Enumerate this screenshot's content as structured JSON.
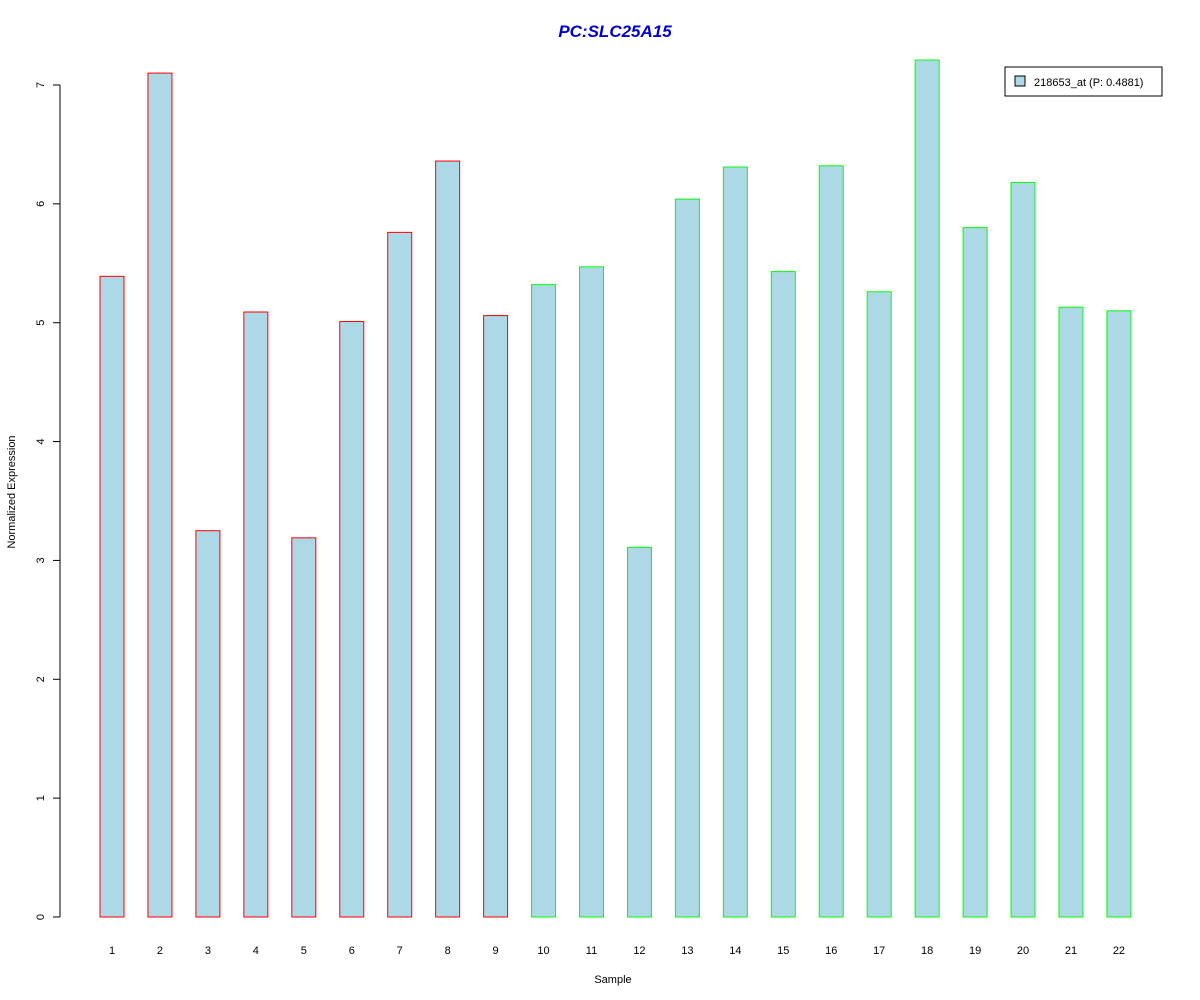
{
  "chart_data": {
    "type": "bar",
    "title": "PC:SLC25A15",
    "xlabel": "Sample",
    "ylabel": "Normalized Expression",
    "ylim": [
      0,
      7.2
    ],
    "yticks": [
      0,
      1,
      2,
      3,
      4,
      5,
      6,
      7
    ],
    "categories": [
      "1",
      "2",
      "3",
      "4",
      "5",
      "6",
      "7",
      "8",
      "9",
      "10",
      "11",
      "12",
      "13",
      "14",
      "15",
      "16",
      "17",
      "18",
      "19",
      "20",
      "21",
      "22"
    ],
    "series": [
      {
        "name": "218653_at (P: 0.4881)",
        "values": [
          5.39,
          7.1,
          3.25,
          5.09,
          3.19,
          5.01,
          5.76,
          6.36,
          5.06,
          5.32,
          5.47,
          3.11,
          6.04,
          6.31,
          5.43,
          6.32,
          5.26,
          7.21,
          5.8,
          6.18,
          5.13,
          5.1
        ]
      }
    ],
    "groups": [
      "red",
      "red",
      "red",
      "red",
      "red",
      "red",
      "red",
      "red",
      "red",
      "green",
      "green",
      "green",
      "green",
      "green",
      "green",
      "green",
      "green",
      "green",
      "green",
      "green",
      "green",
      "green"
    ],
    "legend_position": "top-right",
    "grid": false,
    "colors": {
      "title": "#0000cc",
      "bar_fill": "#add8e6",
      "red": "#ff0000",
      "green": "#00ff00",
      "axis": "#000000"
    }
  }
}
